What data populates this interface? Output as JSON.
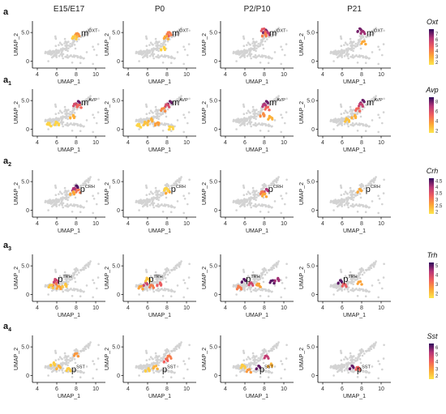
{
  "columns": [
    "E15/E17",
    "P0",
    "P2/P10",
    "P21"
  ],
  "axes": {
    "xlabel": "UMAP_1",
    "ylabel": "UMAP_2",
    "xticks": [
      4,
      6,
      8,
      10
    ],
    "yticks": [
      0,
      5
    ]
  },
  "chart_data": {
    "type": "scatter",
    "xlabel": "UMAP_1",
    "ylabel": "UMAP_2",
    "xlim": [
      3.5,
      11
    ],
    "ylim": [
      -1.2,
      7
    ],
    "x_ticks": [
      4,
      6,
      8,
      10
    ],
    "y_ticks": [
      0,
      5
    ],
    "y_tick_labels": [
      "0",
      "5.0"
    ],
    "background_color": "#d3d3d3",
    "colormap": [
      "#fde64c",
      "#fca636",
      "#f1605d",
      "#b73779",
      "#2e0a5b"
    ],
    "stages": [
      "E15/E17",
      "P0",
      "P2/P10",
      "P21"
    ],
    "rows": [
      {
        "panel_label": "a",
        "gene": "Oxt",
        "annotation": "m",
        "annotation_sup": "OXT",
        "colorbar": {
          "ticks": [
            7,
            6,
            5,
            4,
            3,
            2
          ],
          "min": 1.5,
          "max": 7.8
        },
        "hotspot": {
          "x": 8.0,
          "y": 4.8
        },
        "panels": [
          {
            "stage": "E15/E17",
            "expr": [
              {
                "x": 7.9,
                "y": 4.3,
                "v": 2.5
              },
              {
                "x": 8.1,
                "y": 4.6,
                "v": 3.5
              },
              {
                "x": 7.8,
                "y": 4.1,
                "v": 2.2
              }
            ]
          },
          {
            "stage": "P0",
            "expr": [
              {
                "x": 8.0,
                "y": 4.4,
                "v": 5.0
              },
              {
                "x": 8.2,
                "y": 4.8,
                "v": 4.0
              },
              {
                "x": 7.9,
                "y": 4.1,
                "v": 3.0
              },
              {
                "x": 7.6,
                "y": 2.2,
                "v": 2.0
              }
            ]
          },
          {
            "stage": "P2/P10",
            "expr": [
              {
                "x": 8.1,
                "y": 5.2,
                "v": 7.0
              },
              {
                "x": 8.3,
                "y": 4.8,
                "v": 6.0
              },
              {
                "x": 7.9,
                "y": 5.4,
                "v": 5.0
              },
              {
                "x": 8.0,
                "y": 4.6,
                "v": 4.0
              }
            ]
          },
          {
            "stage": "P21",
            "expr": [
              {
                "x": 7.8,
                "y": 5.4,
                "v": 7.0
              },
              {
                "x": 8.1,
                "y": 5.0,
                "v": 6.5
              },
              {
                "x": 8.2,
                "y": 3.2,
                "v": 3.0
              }
            ]
          }
        ]
      },
      {
        "panel_label": "a",
        "label_sub": "1",
        "gene": "Avp",
        "annotation": "m",
        "annotation_sup": "AVP",
        "colorbar": {
          "ticks": [
            8,
            6,
            4,
            2
          ],
          "min": 1.5,
          "max": 8.8
        },
        "hotspot": {
          "x": 8.0,
          "y": 4.6
        },
        "panels": [
          {
            "stage": "E15/E17",
            "expr": [
              {
                "x": 8.2,
                "y": 4.6,
                "v": 8.0
              },
              {
                "x": 7.9,
                "y": 4.2,
                "v": 6.0
              },
              {
                "x": 8.3,
                "y": 4.0,
                "v": 5.0
              },
              {
                "x": 7.6,
                "y": 2.2,
                "v": 3.0
              },
              {
                "x": 6.0,
                "y": 1.0,
                "v": 2.0
              },
              {
                "x": 5.2,
                "y": 0.8,
                "v": 2.0
              }
            ]
          },
          {
            "stage": "P0",
            "expr": [
              {
                "x": 8.3,
                "y": 4.6,
                "v": 8.0
              },
              {
                "x": 8.0,
                "y": 4.1,
                "v": 6.0
              },
              {
                "x": 7.6,
                "y": 3.4,
                "v": 4.0
              },
              {
                "x": 6.3,
                "y": 1.6,
                "v": 3.0
              },
              {
                "x": 5.8,
                "y": 1.0,
                "v": 2.5
              },
              {
                "x": 5.1,
                "y": 0.6,
                "v": 2.0
              },
              {
                "x": 7.0,
                "y": 0.9,
                "v": 3.5
              },
              {
                "x": 8.4,
                "y": 0.2,
                "v": 2.0
              }
            ]
          },
          {
            "stage": "P2/P10",
            "expr": [
              {
                "x": 8.2,
                "y": 4.6,
                "v": 8.0
              },
              {
                "x": 8.0,
                "y": 4.1,
                "v": 7.0
              },
              {
                "x": 8.3,
                "y": 3.6,
                "v": 5.0
              },
              {
                "x": 7.8,
                "y": 2.5,
                "v": 4.0
              },
              {
                "x": 8.6,
                "y": 2.0,
                "v": 3.0
              }
            ]
          },
          {
            "stage": "P21",
            "expr": [
              {
                "x": 8.1,
                "y": 4.8,
                "v": 8.0
              },
              {
                "x": 7.9,
                "y": 4.2,
                "v": 6.5
              },
              {
                "x": 7.6,
                "y": 3.4,
                "v": 5.0
              },
              {
                "x": 7.2,
                "y": 2.2,
                "v": 3.0
              },
              {
                "x": 6.5,
                "y": 1.6,
                "v": 2.5
              }
            ]
          }
        ]
      },
      {
        "panel_label": "a",
        "label_sub": "2",
        "gene": "Crh",
        "annotation": "p",
        "annotation_sup": "CRH",
        "colorbar": {
          "ticks": [
            4.5,
            4.0,
            3.5,
            3.0,
            2.5,
            2.0
          ],
          "min": 1.8,
          "max": 4.7
        },
        "hotspot": {
          "x": 7.9,
          "y": 3.6
        },
        "panels": [
          {
            "stage": "E15/E17",
            "expr": [
              {
                "x": 8.0,
                "y": 4.0,
                "v": 4.5
              },
              {
                "x": 7.8,
                "y": 3.6,
                "v": 4.0
              },
              {
                "x": 8.2,
                "y": 3.3,
                "v": 3.0
              },
              {
                "x": 7.6,
                "y": 3.0,
                "v": 2.5
              }
            ]
          },
          {
            "stage": "P0",
            "expr": [
              {
                "x": 8.1,
                "y": 3.2,
                "v": 2.5
              },
              {
                "x": 7.9,
                "y": 3.6,
                "v": 2.0
              }
            ]
          },
          {
            "stage": "P2/P10",
            "expr": [
              {
                "x": 8.2,
                "y": 3.4,
                "v": 4.0
              },
              {
                "x": 7.8,
                "y": 3.0,
                "v": 3.0
              },
              {
                "x": 8.0,
                "y": 2.6,
                "v": 2.5
              }
            ]
          },
          {
            "stage": "P21",
            "expr": [
              {
                "x": 7.8,
                "y": 3.4,
                "v": 2.5
              }
            ]
          }
        ]
      },
      {
        "panel_label": "a",
        "label_sub": "3",
        "gene": "Trh",
        "annotation": "p",
        "annotation_sup": "TRH",
        "colorbar": {
          "ticks": [
            5,
            4,
            3,
            2
          ],
          "min": 1.5,
          "max": 5.3
        },
        "hotspot": {
          "x": 5.6,
          "y": 2.6
        },
        "panels": [
          {
            "stage": "E15/E17",
            "expr": [
              {
                "x": 5.8,
                "y": 1.8,
                "v": 3.0
              },
              {
                "x": 6.2,
                "y": 1.2,
                "v": 2.5
              },
              {
                "x": 5.4,
                "y": 1.4,
                "v": 2.0
              },
              {
                "x": 6.8,
                "y": 1.6,
                "v": 2.0
              },
              {
                "x": 5.9,
                "y": 2.4,
                "v": 4.0
              }
            ]
          },
          {
            "stage": "P0",
            "expr": [
              {
                "x": 5.8,
                "y": 1.8,
                "v": 4.0
              },
              {
                "x": 6.4,
                "y": 1.4,
                "v": 3.0
              },
              {
                "x": 5.3,
                "y": 1.2,
                "v": 2.5
              },
              {
                "x": 7.2,
                "y": 1.8,
                "v": 3.5
              },
              {
                "x": 6.0,
                "y": 2.6,
                "v": 2.0
              }
            ]
          },
          {
            "stage": "P2/P10",
            "expr": [
              {
                "x": 5.9,
                "y": 2.4,
                "v": 5.0
              },
              {
                "x": 6.6,
                "y": 1.8,
                "v": 4.0
              },
              {
                "x": 8.8,
                "y": 2.2,
                "v": 5.0
              },
              {
                "x": 9.3,
                "y": 2.6,
                "v": 4.5
              },
              {
                "x": 5.4,
                "y": 1.2,
                "v": 3.0
              },
              {
                "x": 7.4,
                "y": 1.6,
                "v": 2.5
              }
            ]
          },
          {
            "stage": "P21",
            "expr": [
              {
                "x": 5.8,
                "y": 2.2,
                "v": 5.0
              },
              {
                "x": 6.2,
                "y": 1.6,
                "v": 3.5
              },
              {
                "x": 7.8,
                "y": 2.0,
                "v": 2.5
              }
            ]
          }
        ]
      },
      {
        "panel_label": "a",
        "label_sub": "4",
        "gene": "Sst",
        "annotation": "p",
        "annotation_sup": "SST",
        "colorbar": {
          "ticks": [
            6,
            5,
            4,
            3,
            2
          ],
          "min": 1.5,
          "max": 6.5
        },
        "hotspot": {
          "x": 7.0,
          "y": 1.0
        },
        "panels": [
          {
            "stage": "E15/E17",
            "expr": [
              {
                "x": 6.2,
                "y": 1.4,
                "v": 2.5
              },
              {
                "x": 7.2,
                "y": 1.0,
                "v": 2.0
              },
              {
                "x": 8.0,
                "y": 3.6,
                "v": 3.0
              },
              {
                "x": 5.6,
                "y": 2.0,
                "v": 2.0
              }
            ]
          },
          {
            "stage": "P0",
            "expr": [
              {
                "x": 7.9,
                "y": 2.6,
                "v": 4.0
              },
              {
                "x": 8.2,
                "y": 3.2,
                "v": 3.5
              },
              {
                "x": 6.8,
                "y": 1.4,
                "v": 2.5
              },
              {
                "x": 6.0,
                "y": 1.0,
                "v": 2.0
              }
            ]
          },
          {
            "stage": "P2/P10",
            "expr": [
              {
                "x": 7.4,
                "y": 1.4,
                "v": 6.0
              },
              {
                "x": 8.2,
                "y": 3.2,
                "v": 5.0
              },
              {
                "x": 6.4,
                "y": 0.8,
                "v": 3.0
              },
              {
                "x": 8.6,
                "y": 1.8,
                "v": 2.5
              },
              {
                "x": 5.8,
                "y": 1.6,
                "v": 2.0
              }
            ]
          },
          {
            "stage": "P21",
            "expr": [
              {
                "x": 7.0,
                "y": 1.4,
                "v": 6.0
              },
              {
                "x": 7.6,
                "y": 1.2,
                "v": 4.0
              }
            ]
          }
        ]
      }
    ]
  }
}
